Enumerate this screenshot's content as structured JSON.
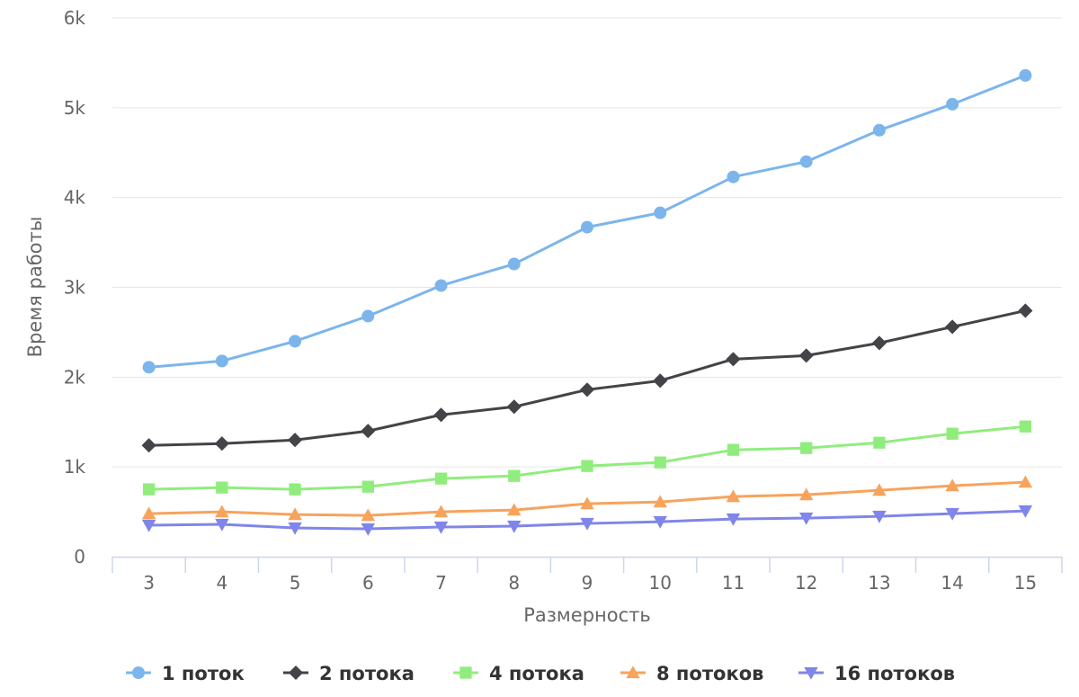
{
  "chart_data": {
    "type": "line",
    "title": "",
    "xlabel": "Размерность",
    "ylabel": "Время работы",
    "categories": [
      "3",
      "4",
      "5",
      "6",
      "7",
      "8",
      "9",
      "10",
      "11",
      "12",
      "13",
      "14",
      "15"
    ],
    "y_ticks": [
      "0",
      "1k",
      "2k",
      "3k",
      "4k",
      "5k",
      "6k"
    ],
    "ylim": [
      0,
      6000
    ],
    "grid": true,
    "legend_position": "bottom",
    "series": [
      {
        "name": "1 поток",
        "color": "#7cb5ec",
        "marker": "circle",
        "values": [
          2110,
          2180,
          2400,
          2680,
          3020,
          3260,
          3670,
          3830,
          4230,
          4400,
          4750,
          5040,
          5360
        ]
      },
      {
        "name": "2 потока",
        "color": "#434348",
        "marker": "diamond",
        "values": [
          1240,
          1260,
          1300,
          1400,
          1580,
          1670,
          1860,
          1960,
          2200,
          2240,
          2380,
          2560,
          2740
        ]
      },
      {
        "name": "4 потока",
        "color": "#90ed7d",
        "marker": "square",
        "values": [
          750,
          770,
          750,
          780,
          870,
          900,
          1010,
          1050,
          1190,
          1210,
          1270,
          1370,
          1450
        ]
      },
      {
        "name": "8 потоков",
        "color": "#f7a35c",
        "marker": "triangle",
        "values": [
          480,
          500,
          470,
          460,
          500,
          520,
          590,
          610,
          670,
          690,
          740,
          790,
          830
        ]
      },
      {
        "name": "16 потоков",
        "color": "#8085e9",
        "marker": "triangle-down",
        "values": [
          350,
          360,
          320,
          310,
          330,
          340,
          370,
          390,
          420,
          430,
          450,
          480,
          510
        ]
      }
    ]
  }
}
